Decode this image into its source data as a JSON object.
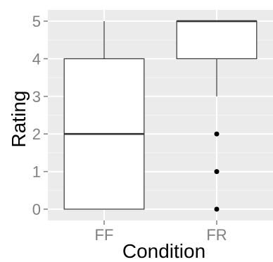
{
  "chart_data": {
    "type": "box",
    "xlabel": "Condition",
    "ylabel": "Rating",
    "ylim": [
      -0.3,
      5.3
    ],
    "yticks": [
      0,
      1,
      2,
      3,
      4,
      5
    ],
    "grid": true,
    "categories": [
      "FF",
      "FR"
    ],
    "boxes": [
      {
        "category": "FF",
        "lower_whisker": 0,
        "q1": 0,
        "median": 2,
        "q3": 4,
        "upper_whisker": 5,
        "outliers": []
      },
      {
        "category": "FR",
        "lower_whisker": 3,
        "q1": 4,
        "median": 5,
        "q3": 5,
        "upper_whisker": 5,
        "outliers": [
          2,
          1,
          0
        ]
      }
    ],
    "colors": {
      "panel": "#EBEBEB",
      "grid_major": "#FFFFFF",
      "grid_minor": "#F5F5F5",
      "box_fill": "#FFFFFF",
      "box_line": "#333333",
      "tick_text": "#7F7F7F",
      "outlier": "#000000"
    }
  }
}
